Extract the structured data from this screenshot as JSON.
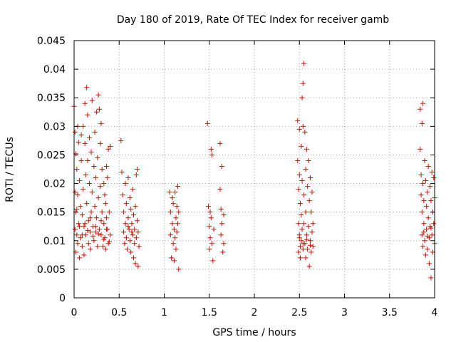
{
  "chart_data": {
    "type": "scatter",
    "title": "Day 180 of 2019, Rate Of TEC Index for receiver gamb",
    "xlabel": "GPS time / hours",
    "ylabel": "ROTI / TECUs",
    "xlim": [
      0,
      4
    ],
    "ylim": [
      0,
      0.045
    ],
    "grid": true,
    "marker": "+",
    "point_color": "#e00000",
    "x_ticks": [
      {
        "value": 0,
        "label": "0"
      },
      {
        "value": 0.5,
        "label": "0.5"
      },
      {
        "value": 1,
        "label": "1"
      },
      {
        "value": 1.5,
        "label": "1.5"
      },
      {
        "value": 2,
        "label": "2"
      },
      {
        "value": 2.5,
        "label": "2.5"
      },
      {
        "value": 3,
        "label": "3"
      },
      {
        "value": 3.5,
        "label": "3.5"
      },
      {
        "value": 4,
        "label": "4"
      }
    ],
    "y_ticks": [
      {
        "value": 0,
        "label": "0"
      },
      {
        "value": 0.005,
        "label": "0.005"
      },
      {
        "value": 0.01,
        "label": "0.01"
      },
      {
        "value": 0.015,
        "label": "0.015"
      },
      {
        "value": 0.02,
        "label": "0.02"
      },
      {
        "value": 0.025,
        "label": "0.025"
      },
      {
        "value": 0.03,
        "label": "0.03"
      },
      {
        "value": 0.035,
        "label": "0.035"
      },
      {
        "value": 0.04,
        "label": "0.04"
      },
      {
        "value": 0.045,
        "label": "0.045"
      }
    ],
    "points": [
      [
        0.0,
        0.0335
      ],
      [
        0.01,
        0.029
      ],
      [
        0.01,
        0.0185
      ],
      [
        0.01,
        0.012
      ],
      [
        0.02,
        0.0252
      ],
      [
        0.02,
        0.015
      ],
      [
        0.02,
        0.008
      ],
      [
        0.03,
        0.0225
      ],
      [
        0.03,
        0.011
      ],
      [
        0.04,
        0.03
      ],
      [
        0.04,
        0.018
      ],
      [
        0.04,
        0.0095
      ],
      [
        0.05,
        0.0272
      ],
      [
        0.05,
        0.013
      ],
      [
        0.06,
        0.0205
      ],
      [
        0.06,
        0.007
      ],
      [
        0.07,
        0.016
      ],
      [
        0.07,
        0.0105
      ],
      [
        0.08,
        0.0285
      ],
      [
        0.08,
        0.024
      ],
      [
        0.09,
        0.0145
      ],
      [
        0.09,
        0.009
      ],
      [
        0.1,
        0.03
      ],
      [
        0.1,
        0.019
      ],
      [
        0.11,
        0.0125
      ],
      [
        0.11,
        0.0075
      ],
      [
        0.12,
        0.034
      ],
      [
        0.12,
        0.027
      ],
      [
        0.13,
        0.0215
      ],
      [
        0.13,
        0.011
      ],
      [
        0.14,
        0.0368
      ],
      [
        0.14,
        0.0165
      ],
      [
        0.15,
        0.032
      ],
      [
        0.15,
        0.024
      ],
      [
        0.16,
        0.0135
      ],
      [
        0.16,
        0.0095
      ],
      [
        0.17,
        0.028
      ],
      [
        0.17,
        0.02
      ],
      [
        0.18,
        0.0115
      ],
      [
        0.18,
        0.0085
      ],
      [
        0.19,
        0.0255
      ],
      [
        0.19,
        0.015
      ],
      [
        0.2,
        0.0345
      ],
      [
        0.2,
        0.0185
      ],
      [
        0.21,
        0.0125
      ],
      [
        0.22,
        0.023
      ],
      [
        0.22,
        0.01
      ],
      [
        0.23,
        0.029
      ],
      [
        0.23,
        0.016
      ],
      [
        0.24,
        0.021
      ],
      [
        0.24,
        0.0115
      ],
      [
        0.25,
        0.0325
      ],
      [
        0.25,
        0.014
      ],
      [
        0.26,
        0.0245
      ],
      [
        0.26,
        0.009
      ],
      [
        0.27,
        0.0355
      ],
      [
        0.27,
        0.0175
      ],
      [
        0.28,
        0.033
      ],
      [
        0.28,
        0.012
      ],
      [
        0.29,
        0.027
      ],
      [
        0.29,
        0.0195
      ],
      [
        0.3,
        0.0305
      ],
      [
        0.3,
        0.011
      ],
      [
        0.31,
        0.0225
      ],
      [
        0.31,
        0.015
      ],
      [
        0.32,
        0.009
      ],
      [
        0.33,
        0.02
      ],
      [
        0.33,
        0.013
      ],
      [
        0.34,
        0.018
      ],
      [
        0.34,
        0.0105
      ],
      [
        0.35,
        0.0165
      ],
      [
        0.35,
        0.0085
      ],
      [
        0.36,
        0.023
      ],
      [
        0.36,
        0.014
      ],
      [
        0.37,
        0.021
      ],
      [
        0.37,
        0.012
      ],
      [
        0.38,
        0.026
      ],
      [
        0.38,
        0.0095
      ],
      [
        0.39,
        0.015
      ],
      [
        0.4,
        0.0265
      ],
      [
        0.4,
        0.011
      ],
      [
        0.03,
        0.0155
      ],
      [
        0.06,
        0.0125
      ],
      [
        0.09,
        0.011
      ],
      [
        0.12,
        0.013
      ],
      [
        0.15,
        0.0118
      ],
      [
        0.18,
        0.014
      ],
      [
        0.21,
        0.0108
      ],
      [
        0.24,
        0.0125
      ],
      [
        0.27,
        0.0112
      ],
      [
        0.3,
        0.0135
      ],
      [
        0.33,
        0.0102
      ],
      [
        0.36,
        0.012
      ],
      [
        0.39,
        0.0098
      ],
      [
        0.52,
        0.0275
      ],
      [
        0.53,
        0.022
      ],
      [
        0.54,
        0.018
      ],
      [
        0.55,
        0.015
      ],
      [
        0.55,
        0.0115
      ],
      [
        0.56,
        0.0095
      ],
      [
        0.57,
        0.02
      ],
      [
        0.57,
        0.013
      ],
      [
        0.58,
        0.0165
      ],
      [
        0.58,
        0.0105
      ],
      [
        0.59,
        0.0085
      ],
      [
        0.6,
        0.014
      ],
      [
        0.6,
        0.021
      ],
      [
        0.61,
        0.012
      ],
      [
        0.62,
        0.0175
      ],
      [
        0.62,
        0.01
      ],
      [
        0.63,
        0.0155
      ],
      [
        0.63,
        0.008
      ],
      [
        0.64,
        0.013
      ],
      [
        0.65,
        0.019
      ],
      [
        0.65,
        0.011
      ],
      [
        0.66,
        0.0145
      ],
      [
        0.66,
        0.007
      ],
      [
        0.67,
        0.012
      ],
      [
        0.67,
        0.0095
      ],
      [
        0.68,
        0.016
      ],
      [
        0.68,
        0.006
      ],
      [
        0.69,
        0.0215
      ],
      [
        0.69,
        0.0105
      ],
      [
        0.7,
        0.0225
      ],
      [
        0.7,
        0.0135
      ],
      [
        0.71,
        0.0055
      ],
      [
        0.71,
        0.0115
      ],
      [
        0.72,
        0.009
      ],
      [
        0.6,
        0.0125
      ],
      [
        0.64,
        0.0115
      ],
      [
        1.06,
        0.0185
      ],
      [
        1.07,
        0.015
      ],
      [
        1.07,
        0.011
      ],
      [
        1.08,
        0.007
      ],
      [
        1.09,
        0.0175
      ],
      [
        1.09,
        0.013
      ],
      [
        1.1,
        0.0095
      ],
      [
        1.1,
        0.0165
      ],
      [
        1.11,
        0.012
      ],
      [
        1.11,
        0.0065
      ],
      [
        1.12,
        0.0185
      ],
      [
        1.12,
        0.0105
      ],
      [
        1.13,
        0.014
      ],
      [
        1.13,
        0.0085
      ],
      [
        1.14,
        0.016
      ],
      [
        1.14,
        0.0115
      ],
      [
        1.15,
        0.0195
      ],
      [
        1.15,
        0.013
      ],
      [
        1.16,
        0.005
      ],
      [
        1.16,
        0.015
      ],
      [
        1.48,
        0.0305
      ],
      [
        1.49,
        0.016
      ],
      [
        1.5,
        0.0125
      ],
      [
        1.5,
        0.0085
      ],
      [
        1.51,
        0.015
      ],
      [
        1.51,
        0.0105
      ],
      [
        1.52,
        0.026
      ],
      [
        1.52,
        0.014
      ],
      [
        1.53,
        0.025
      ],
      [
        1.53,
        0.0095
      ],
      [
        1.54,
        0.0065
      ],
      [
        1.55,
        0.012
      ],
      [
        1.62,
        0.027
      ],
      [
        1.62,
        0.019
      ],
      [
        1.63,
        0.0155
      ],
      [
        1.63,
        0.011
      ],
      [
        1.64,
        0.023
      ],
      [
        1.64,
        0.013
      ],
      [
        1.65,
        0.008
      ],
      [
        1.66,
        0.0145
      ],
      [
        1.66,
        0.0095
      ],
      [
        2.48,
        0.031
      ],
      [
        2.48,
        0.024
      ],
      [
        2.49,
        0.019
      ],
      [
        2.49,
        0.013
      ],
      [
        2.49,
        0.008
      ],
      [
        2.5,
        0.0295
      ],
      [
        2.5,
        0.0215
      ],
      [
        2.5,
        0.011
      ],
      [
        2.51,
        0.0165
      ],
      [
        2.51,
        0.009
      ],
      [
        2.51,
        0.007
      ],
      [
        2.52,
        0.0265
      ],
      [
        2.52,
        0.0145
      ],
      [
        2.52,
        0.01
      ],
      [
        2.53,
        0.035
      ],
      [
        2.53,
        0.0205
      ],
      [
        2.53,
        0.012
      ],
      [
        2.54,
        0.0375
      ],
      [
        2.54,
        0.03
      ],
      [
        2.54,
        0.0085
      ],
      [
        2.55,
        0.041
      ],
      [
        2.55,
        0.018
      ],
      [
        2.55,
        0.013
      ],
      [
        2.56,
        0.029
      ],
      [
        2.56,
        0.0095
      ],
      [
        2.57,
        0.0225
      ],
      [
        2.57,
        0.015
      ],
      [
        2.57,
        0.007
      ],
      [
        2.58,
        0.026
      ],
      [
        2.58,
        0.011
      ],
      [
        2.59,
        0.0195
      ],
      [
        2.59,
        0.0085
      ],
      [
        2.6,
        0.024
      ],
      [
        2.6,
        0.0125
      ],
      [
        2.61,
        0.017
      ],
      [
        2.61,
        0.0055
      ],
      [
        2.62,
        0.021
      ],
      [
        2.62,
        0.01
      ],
      [
        2.63,
        0.015
      ],
      [
        2.63,
        0.008
      ],
      [
        2.64,
        0.0185
      ],
      [
        2.64,
        0.0115
      ],
      [
        2.65,
        0.013
      ],
      [
        2.65,
        0.009
      ],
      [
        2.5,
        0.0105
      ],
      [
        2.54,
        0.0095
      ],
      [
        2.58,
        0.0102
      ],
      [
        2.62,
        0.0092
      ],
      [
        3.84,
        0.033
      ],
      [
        3.84,
        0.026
      ],
      [
        3.85,
        0.0215
      ],
      [
        3.85,
        0.018
      ],
      [
        3.86,
        0.0305
      ],
      [
        3.86,
        0.015
      ],
      [
        3.86,
        0.011
      ],
      [
        3.87,
        0.034
      ],
      [
        3.87,
        0.02
      ],
      [
        3.87,
        0.009
      ],
      [
        3.88,
        0.017
      ],
      [
        3.88,
        0.013
      ],
      [
        3.89,
        0.024
      ],
      [
        3.89,
        0.01
      ],
      [
        3.9,
        0.0205
      ],
      [
        3.9,
        0.0075
      ],
      [
        3.91,
        0.016
      ],
      [
        3.91,
        0.012
      ],
      [
        3.92,
        0.0185
      ],
      [
        3.92,
        0.0085
      ],
      [
        3.93,
        0.023
      ],
      [
        3.93,
        0.014
      ],
      [
        3.94,
        0.0105
      ],
      [
        3.94,
        0.006
      ],
      [
        3.95,
        0.0195
      ],
      [
        3.95,
        0.0125
      ],
      [
        3.96,
        0.017
      ],
      [
        3.96,
        0.0035
      ],
      [
        3.97,
        0.022
      ],
      [
        3.97,
        0.011
      ],
      [
        3.98,
        0.015
      ],
      [
        3.98,
        0.008
      ],
      [
        3.99,
        0.021
      ],
      [
        3.99,
        0.013
      ],
      [
        4.0,
        0.0175
      ],
      [
        4.0,
        0.0095
      ],
      [
        3.88,
        0.0115
      ],
      [
        3.92,
        0.0108
      ],
      [
        3.96,
        0.0122
      ]
    ]
  }
}
